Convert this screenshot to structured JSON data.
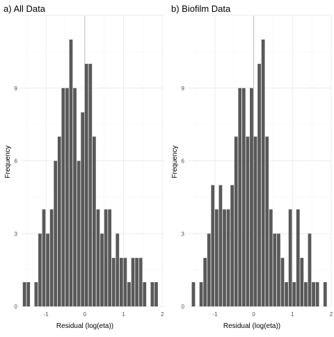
{
  "chart_data": [
    {
      "type": "bar",
      "title": "a) All Data",
      "xlabel": "Residual (log(eta))",
      "ylabel": "Frequency",
      "xlim": [
        -1.65,
        2.05
      ],
      "ylim": [
        0,
        12
      ],
      "x_ticks": [
        -1,
        0,
        1,
        2
      ],
      "y_ticks": [
        0,
        3,
        6,
        9
      ],
      "bin_width": 0.1,
      "bar_color": "#595959",
      "bars": [
        {
          "x": -1.55,
          "y": 1
        },
        {
          "x": -1.45,
          "y": 1
        },
        {
          "x": -1.25,
          "y": 1
        },
        {
          "x": -1.15,
          "y": 3
        },
        {
          "x": -1.05,
          "y": 4
        },
        {
          "x": -0.95,
          "y": 3
        },
        {
          "x": -0.85,
          "y": 4
        },
        {
          "x": -0.75,
          "y": 6
        },
        {
          "x": -0.65,
          "y": 7
        },
        {
          "x": -0.55,
          "y": 9
        },
        {
          "x": -0.45,
          "y": 9
        },
        {
          "x": -0.35,
          "y": 11
        },
        {
          "x": -0.25,
          "y": 9
        },
        {
          "x": -0.15,
          "y": 6
        },
        {
          "x": -0.05,
          "y": 8
        },
        {
          "x": 0.05,
          "y": 10
        },
        {
          "x": 0.15,
          "y": 10
        },
        {
          "x": 0.25,
          "y": 7
        },
        {
          "x": 0.35,
          "y": 4
        },
        {
          "x": 0.45,
          "y": 3
        },
        {
          "x": 0.55,
          "y": 4
        },
        {
          "x": 0.65,
          "y": 4
        },
        {
          "x": 0.75,
          "y": 2
        },
        {
          "x": 0.85,
          "y": 3
        },
        {
          "x": 0.95,
          "y": 2
        },
        {
          "x": 1.05,
          "y": 2
        },
        {
          "x": 1.15,
          "y": 1
        },
        {
          "x": 1.25,
          "y": 2
        },
        {
          "x": 1.35,
          "y": 2
        },
        {
          "x": 1.45,
          "y": 2
        },
        {
          "x": 1.55,
          "y": 1
        },
        {
          "x": 1.75,
          "y": 1
        },
        {
          "x": 1.85,
          "y": 1
        }
      ]
    },
    {
      "type": "bar",
      "title": "b) Biofilm Data",
      "xlabel": "Residual (log(eta))",
      "ylabel": "Frequency",
      "xlim": [
        -1.7,
        2.0
      ],
      "ylim": [
        0,
        12
      ],
      "x_ticks": [
        -1,
        0,
        1,
        2
      ],
      "y_ticks": [
        0,
        3,
        6,
        9
      ],
      "bin_width": 0.1,
      "bar_color": "#595959",
      "bars": [
        {
          "x": -1.55,
          "y": 1
        },
        {
          "x": -1.35,
          "y": 1
        },
        {
          "x": -1.25,
          "y": 2
        },
        {
          "x": -1.15,
          "y": 3
        },
        {
          "x": -1.05,
          "y": 5
        },
        {
          "x": -0.95,
          "y": 4
        },
        {
          "x": -0.85,
          "y": 5
        },
        {
          "x": -0.75,
          "y": 4
        },
        {
          "x": -0.65,
          "y": 4
        },
        {
          "x": -0.55,
          "y": 5
        },
        {
          "x": -0.45,
          "y": 7
        },
        {
          "x": -0.35,
          "y": 9
        },
        {
          "x": -0.25,
          "y": 9
        },
        {
          "x": -0.15,
          "y": 7
        },
        {
          "x": -0.05,
          "y": 9
        },
        {
          "x": 0.05,
          "y": 7
        },
        {
          "x": 0.15,
          "y": 10
        },
        {
          "x": 0.25,
          "y": 11
        },
        {
          "x": 0.35,
          "y": 7
        },
        {
          "x": 0.45,
          "y": 4
        },
        {
          "x": 0.55,
          "y": 3
        },
        {
          "x": 0.65,
          "y": 3
        },
        {
          "x": 0.75,
          "y": 2
        },
        {
          "x": 0.85,
          "y": 1
        },
        {
          "x": 0.95,
          "y": 4
        },
        {
          "x": 1.05,
          "y": 1
        },
        {
          "x": 1.15,
          "y": 4
        },
        {
          "x": 1.25,
          "y": 2
        },
        {
          "x": 1.35,
          "y": 1
        },
        {
          "x": 1.45,
          "y": 3
        },
        {
          "x": 1.55,
          "y": 1
        },
        {
          "x": 1.65,
          "y": 1
        },
        {
          "x": 1.85,
          "y": 1
        }
      ]
    }
  ]
}
